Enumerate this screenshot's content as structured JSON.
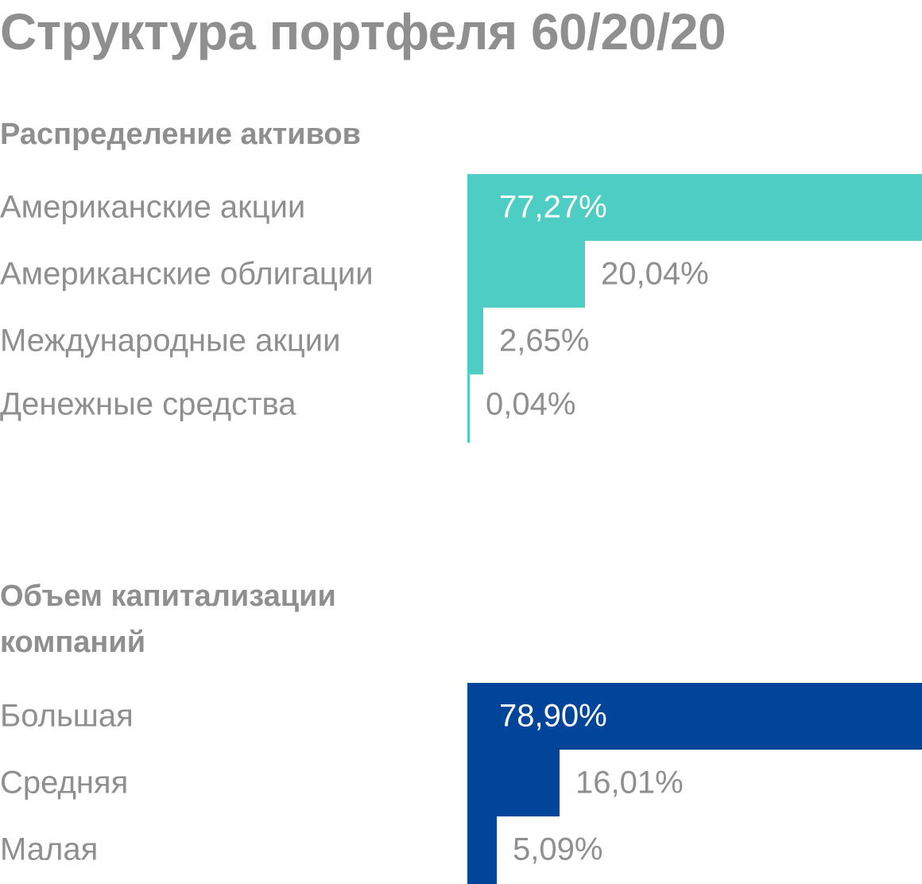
{
  "title": "Структура портфеля 60/20/20",
  "chart_data": [
    {
      "type": "bar",
      "orientation": "horizontal",
      "title": "Распределение активов",
      "color": "#4ecdc4",
      "xlim": [
        0,
        77.27
      ],
      "categories": [
        "Американские акции",
        "Американские облигации",
        "Международные акции",
        "Денежные средства"
      ],
      "values": [
        77.27,
        20.04,
        2.65,
        0.04
      ],
      "value_labels": [
        "77,27%",
        "20,04%",
        "2,65%",
        "0,04%"
      ]
    },
    {
      "type": "bar",
      "orientation": "horizontal",
      "title": "Объем капитализации компаний",
      "color": "#004599",
      "xlim": [
        0,
        78.9
      ],
      "categories": [
        "Большая",
        "Средняя",
        "Малая"
      ],
      "values": [
        78.9,
        16.01,
        5.09
      ],
      "value_labels": [
        "78,90%",
        "16,01%",
        "5,09%"
      ]
    }
  ]
}
